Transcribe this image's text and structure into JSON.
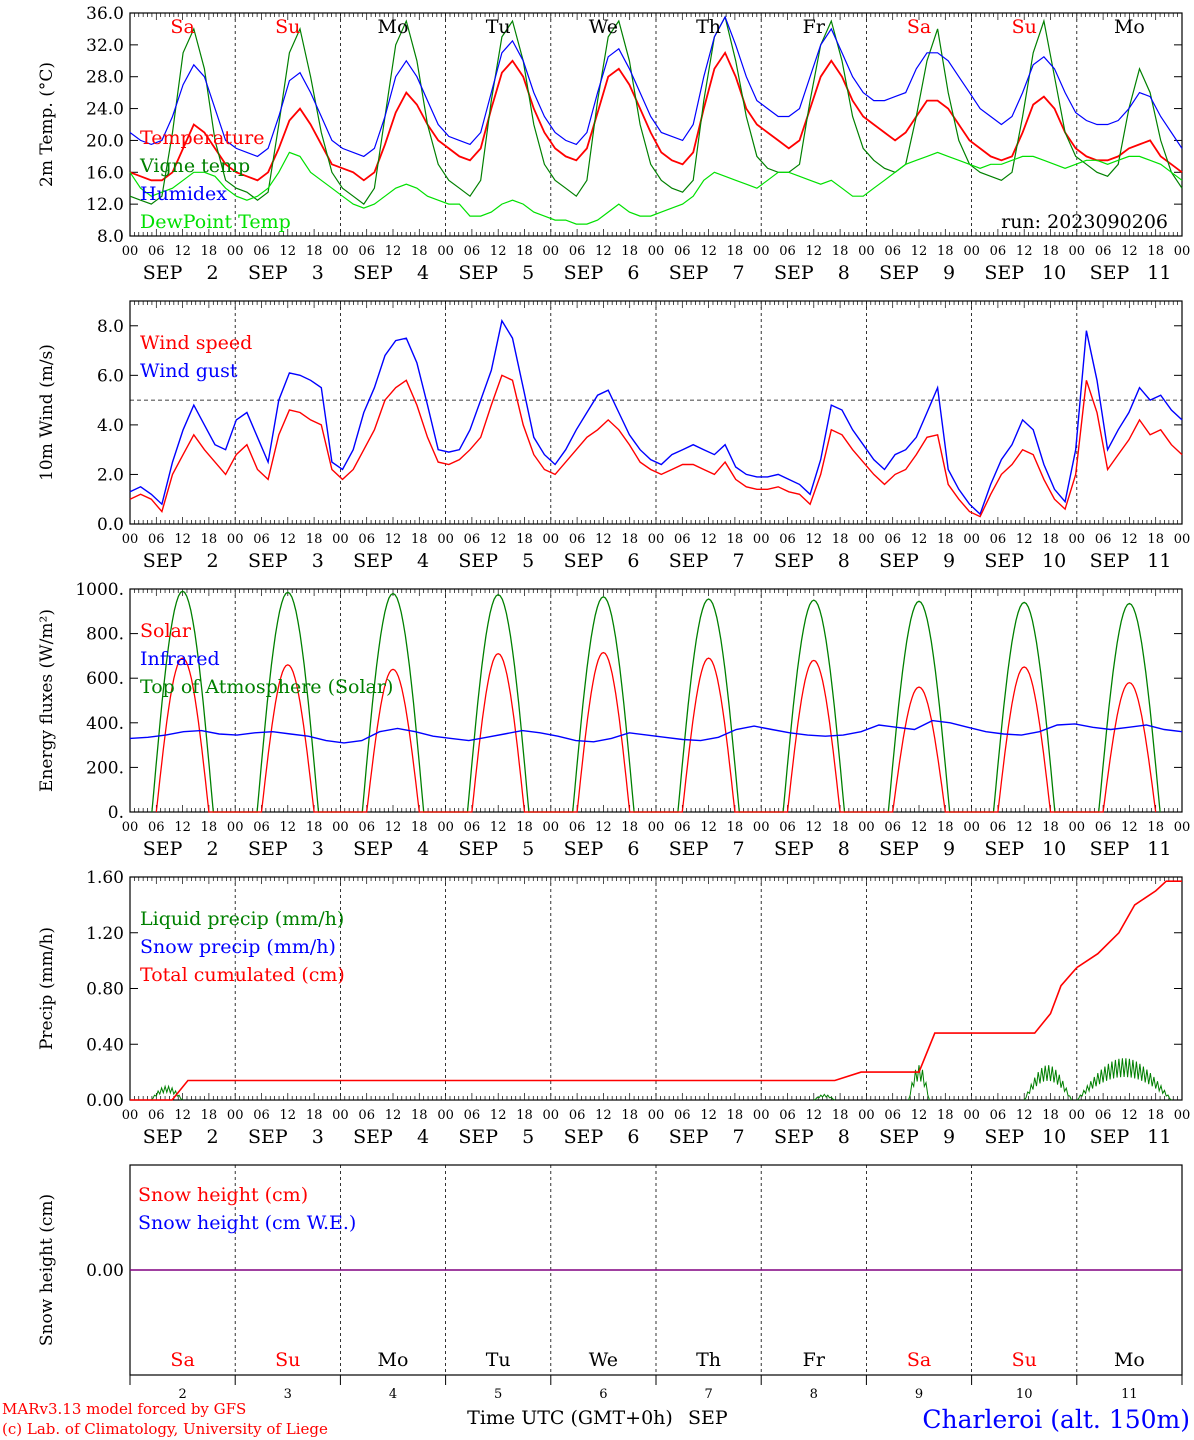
{
  "days": [
    "2",
    "3",
    "4",
    "5",
    "6",
    "7",
    "8",
    "9",
    "10",
    "11"
  ],
  "month": "SEP",
  "weekdays": [
    "Sa",
    "Su",
    "Mo",
    "Tu",
    "We",
    "Th",
    "Fr",
    "Sa",
    "Su",
    "Mo"
  ],
  "weekday_colors": [
    "#ff0000",
    "#ff0000",
    "#000000",
    "#000000",
    "#000000",
    "#000000",
    "#000000",
    "#ff0000",
    "#ff0000",
    "#000000"
  ],
  "hour_labels": [
    "00",
    "06",
    "12",
    "18"
  ],
  "final_hour_label": "00",
  "colors": {
    "red": "#ff0000",
    "green": "#008000",
    "blue": "#0000ff",
    "lightgreen": "#00e000",
    "purple": "#800080"
  },
  "footer": {
    "model": "MARv3.13 model forced by GFS",
    "copyright": "(c) Lab. of Climatology, University of Liege",
    "xlabel": "Time UTC (GMT+0h)",
    "month": "SEP",
    "station": "Charleroi (alt. 150m)"
  },
  "chart_data": [
    {
      "type": "line",
      "ylabel": "2m Temp. (°C)",
      "ylim": [
        8,
        36
      ],
      "yticks": [
        "8.0",
        "12.0",
        "16.0",
        "20.0",
        "24.0",
        "28.0",
        "32.0",
        "36.0"
      ],
      "annotation": "run: 2023090206",
      "series": [
        {
          "name": "Temperature",
          "color": "red",
          "values": [
            16,
            15.5,
            15,
            15,
            16,
            19,
            22,
            21,
            19,
            17,
            16,
            15.5,
            15,
            16,
            19,
            22.5,
            24,
            22,
            19.5,
            17,
            16.5,
            16,
            15,
            16,
            19.5,
            23.5,
            26,
            24.5,
            22,
            20,
            19,
            18,
            17.5,
            19,
            24,
            28.5,
            30,
            28,
            24,
            21,
            19,
            18,
            17.5,
            19,
            23.5,
            28,
            29,
            27,
            24,
            21,
            18.5,
            17.5,
            17,
            18.5,
            24,
            29,
            31,
            28,
            24,
            22,
            21,
            20,
            19,
            20,
            24,
            28,
            30,
            28,
            25,
            23,
            22,
            21,
            20,
            21,
            23,
            25,
            25,
            24,
            22,
            20,
            19,
            18,
            17.5,
            18,
            21,
            24.5,
            25.5,
            24,
            21,
            19,
            18,
            17.5,
            17.5,
            18,
            19,
            19.5,
            20,
            18,
            17,
            16
          ]
        },
        {
          "name": "Vigne temp",
          "color": "green",
          "values": [
            13,
            12.5,
            12,
            13,
            21,
            31,
            34,
            29,
            20,
            15,
            14,
            13.5,
            12.5,
            13.5,
            22,
            31,
            34,
            28,
            21,
            16,
            14,
            13,
            12,
            14,
            23,
            32,
            35,
            30,
            22,
            17,
            15,
            14,
            13,
            15,
            25,
            33,
            35,
            30,
            22,
            17,
            15,
            14,
            13,
            15,
            25,
            33,
            35,
            30,
            22,
            17,
            15,
            14,
            13.5,
            15,
            25,
            33,
            35.5,
            30,
            23,
            18,
            16.5,
            16,
            16,
            17,
            25,
            32,
            35,
            30,
            23,
            19,
            17.5,
            16.5,
            16,
            17,
            23,
            30,
            34,
            26,
            20,
            17,
            16,
            15.5,
            15,
            16,
            23,
            31,
            35,
            28,
            21,
            18,
            17,
            16,
            15.5,
            17,
            24,
            29,
            26,
            20,
            16,
            14
          ]
        },
        {
          "name": "Humidex",
          "color": "blue",
          "values": [
            21,
            20,
            19.5,
            20,
            23,
            27,
            29.5,
            28,
            24,
            20,
            19,
            18.5,
            18,
            19,
            23,
            27.5,
            28.5,
            26,
            23,
            20,
            19,
            18.5,
            18,
            19,
            23,
            28,
            30,
            28,
            25,
            22,
            20.5,
            20,
            19.5,
            21,
            26,
            31,
            32.5,
            30,
            26,
            23,
            21,
            20,
            19.5,
            21,
            26,
            30.5,
            31.5,
            29,
            26,
            23,
            21,
            20.5,
            20,
            22,
            28,
            33,
            35.5,
            32,
            28,
            25,
            24,
            23,
            23,
            24,
            28,
            32,
            34,
            31,
            28,
            26,
            25,
            25,
            25.5,
            26,
            29,
            31,
            31,
            30,
            28,
            26,
            24,
            23,
            22,
            23,
            26,
            29.5,
            30.5,
            29,
            26,
            23.5,
            22.5,
            22,
            22,
            22.5,
            24,
            26,
            25.5,
            23,
            21,
            19
          ]
        },
        {
          "name": "DewPoint Temp",
          "color": "lightgreen",
          "values": [
            16,
            14,
            13,
            13.5,
            14,
            15,
            16,
            16,
            15.5,
            14,
            13,
            12.5,
            13,
            14,
            16,
            18.5,
            18,
            16,
            15,
            14,
            13,
            12,
            11.5,
            12,
            13,
            14,
            14.5,
            14,
            13,
            12.5,
            12,
            12,
            10.5,
            10.5,
            11,
            12,
            12.5,
            12,
            11,
            10.5,
            10,
            10,
            9.5,
            9.5,
            10,
            11,
            12,
            11,
            10.5,
            10.5,
            11,
            11.5,
            12,
            13,
            15,
            16,
            15.5,
            15,
            14.5,
            14,
            15,
            16,
            16,
            15.5,
            15,
            14.5,
            15,
            14,
            13,
            13,
            14,
            15,
            16,
            17,
            17.5,
            18,
            18.5,
            18,
            17.5,
            17,
            16.5,
            17,
            17,
            17.5,
            18,
            18,
            17.5,
            17,
            16.5,
            17,
            17.5,
            17.5,
            17,
            17.5,
            18,
            18,
            17.5,
            17,
            16,
            15
          ]
        }
      ]
    },
    {
      "type": "line",
      "ylabel": "10m Wind (m/s)",
      "ylim": [
        0,
        9
      ],
      "yticks": [
        "0.0",
        "2.0",
        "4.0",
        "6.0",
        "8.0"
      ],
      "reference_line": 5,
      "series": [
        {
          "name": "Wind speed",
          "color": "red",
          "values": [
            1.0,
            1.2,
            1.0,
            0.5,
            2.0,
            2.8,
            3.6,
            3.0,
            2.5,
            2.0,
            2.8,
            3.2,
            2.2,
            1.8,
            3.6,
            4.6,
            4.5,
            4.2,
            4.0,
            2.2,
            1.8,
            2.2,
            3.0,
            3.8,
            5.0,
            5.5,
            5.8,
            4.8,
            3.5,
            2.5,
            2.4,
            2.6,
            3.0,
            3.5,
            4.8,
            6.0,
            5.8,
            4.0,
            2.8,
            2.2,
            2.0,
            2.5,
            3.0,
            3.5,
            3.8,
            4.2,
            3.8,
            3.2,
            2.5,
            2.2,
            2.0,
            2.2,
            2.4,
            2.4,
            2.2,
            2.0,
            2.5,
            1.8,
            1.5,
            1.4,
            1.4,
            1.5,
            1.3,
            1.2,
            0.8,
            2.0,
            3.8,
            3.6,
            3.0,
            2.5,
            2.0,
            1.6,
            2.0,
            2.2,
            2.8,
            3.5,
            3.6,
            1.6,
            1.0,
            0.5,
            0.3,
            1.2,
            2.0,
            2.4,
            3.0,
            2.8,
            1.8,
            1.0,
            0.6,
            2.0,
            5.8,
            4.5,
            2.2,
            2.8,
            3.4,
            4.2,
            3.6,
            3.8,
            3.2,
            2.8
          ]
        },
        {
          "name": "Wind gust",
          "color": "blue",
          "values": [
            1.3,
            1.5,
            1.2,
            0.8,
            2.5,
            3.8,
            4.8,
            4.0,
            3.2,
            3.0,
            4.2,
            4.5,
            3.5,
            2.5,
            5.0,
            6.1,
            6.0,
            5.8,
            5.5,
            2.5,
            2.2,
            3.0,
            4.5,
            5.5,
            6.8,
            7.4,
            7.5,
            6.5,
            4.8,
            3.0,
            2.9,
            3.0,
            3.8,
            5.0,
            6.2,
            8.2,
            7.5,
            5.5,
            3.5,
            2.8,
            2.4,
            3.0,
            3.8,
            4.5,
            5.2,
            5.4,
            4.5,
            3.6,
            3.0,
            2.6,
            2.4,
            2.8,
            3.0,
            3.2,
            3.0,
            2.8,
            3.2,
            2.3,
            2.0,
            1.9,
            1.9,
            2.0,
            1.8,
            1.6,
            1.2,
            2.6,
            4.8,
            4.6,
            3.8,
            3.2,
            2.6,
            2.2,
            2.8,
            3.0,
            3.5,
            4.5,
            5.5,
            2.2,
            1.4,
            0.8,
            0.4,
            1.6,
            2.6,
            3.2,
            4.2,
            3.8,
            2.4,
            1.4,
            0.9,
            3.0,
            7.8,
            5.8,
            3.0,
            3.8,
            4.5,
            5.5,
            5.0,
            5.2,
            4.6,
            4.2
          ]
        }
      ]
    },
    {
      "type": "line",
      "ylabel": "Energy fluxes (W/m²)",
      "ylim": [
        0,
        1000
      ],
      "yticks": [
        "0.",
        "200.",
        "400.",
        "600.",
        "800.",
        "1000."
      ],
      "day_max": {
        "solar": [
          690,
          660,
          640,
          710,
          715,
          690,
          680,
          560,
          650,
          580
        ],
        "top_of_atmosphere": [
          990,
          985,
          980,
          975,
          965,
          955,
          950,
          945,
          940,
          935
        ]
      },
      "infrared": [
        330,
        335,
        345,
        360,
        365,
        350,
        345,
        355,
        360,
        350,
        340,
        320,
        310,
        320,
        360,
        375,
        360,
        340,
        330,
        320,
        335,
        350,
        365,
        355,
        340,
        320,
        315,
        330,
        355,
        345,
        335,
        325,
        320,
        335,
        370,
        385,
        370,
        355,
        345,
        340,
        345,
        360,
        390,
        380,
        370,
        410,
        400,
        380,
        360,
        350,
        345,
        360,
        390,
        395,
        380,
        370,
        380,
        390,
        370,
        360
      ]
    },
    {
      "type": "line",
      "ylabel": "Precip (mm/h)",
      "ylim": [
        0,
        1.6
      ],
      "yticks": [
        "0.00",
        "0.40",
        "0.80",
        "1.20",
        "1.60"
      ],
      "series": [
        {
          "name": "Liquid precip (mm/h)",
          "color": "green"
        },
        {
          "name": "Snow precip (mm/h)",
          "color": "blue"
        },
        {
          "name": "Total cumulated (cm)",
          "color": "red"
        }
      ],
      "cumulated_points": [
        [
          0,
          0
        ],
        [
          0.4,
          0.0
        ],
        [
          0.55,
          0.14
        ],
        [
          6.7,
          0.14
        ],
        [
          6.95,
          0.2
        ],
        [
          7.5,
          0.2
        ],
        [
          7.65,
          0.48
        ],
        [
          8.6,
          0.48
        ],
        [
          8.75,
          0.62
        ],
        [
          8.85,
          0.82
        ],
        [
          9.0,
          0.95
        ],
        [
          9.2,
          1.05
        ],
        [
          9.4,
          1.2
        ],
        [
          9.55,
          1.4
        ],
        [
          9.75,
          1.5
        ],
        [
          9.85,
          1.57
        ],
        [
          10.0,
          1.57
        ]
      ],
      "liquid_bursts": [
        [
          0.2,
          0.5,
          0.1
        ],
        [
          6.5,
          6.7,
          0.04
        ],
        [
          7.4,
          7.6,
          0.25
        ],
        [
          8.5,
          8.95,
          0.25
        ],
        [
          9.0,
          9.9,
          0.3
        ]
      ]
    },
    {
      "type": "line",
      "ylabel": "Snow height (cm)",
      "ylim": [
        -1,
        1
      ],
      "yticks": [
        "0.00"
      ],
      "series": [
        {
          "name": "Snow height (cm)",
          "color": "red",
          "values": [
            0,
            0
          ]
        },
        {
          "name": "Snow height (cm W.E.)",
          "color": "blue",
          "values": [
            0,
            0
          ]
        }
      ]
    }
  ]
}
